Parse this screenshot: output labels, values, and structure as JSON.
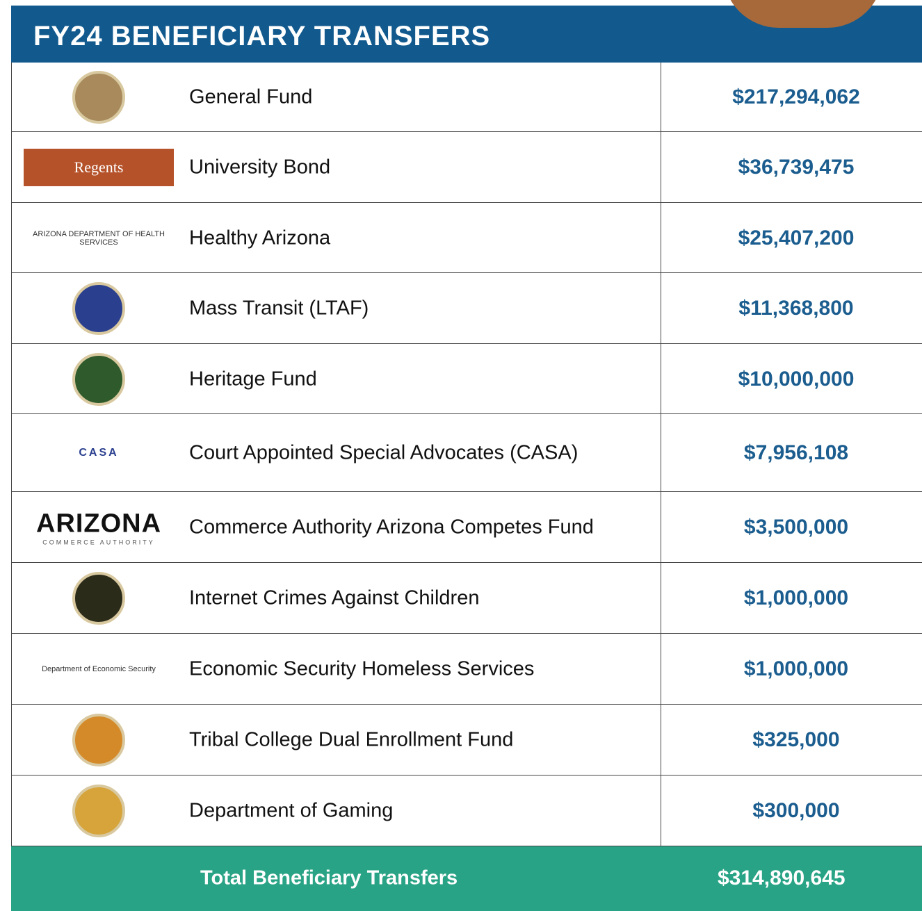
{
  "header": {
    "title": "FY24 BENEFICIARY TRANSFERS"
  },
  "table": {
    "rows": [
      {
        "label": "General Fund",
        "amount": "$217,294,062"
      },
      {
        "label": "University Bond",
        "amount": "$36,739,475",
        "logo_text": "Regents"
      },
      {
        "label": "Healthy Arizona",
        "amount": "$25,407,200",
        "logo_text": "ARIZONA DEPARTMENT OF HEALTH SERVICES"
      },
      {
        "label": "Mass Transit (LTAF)",
        "amount": "$11,368,800"
      },
      {
        "label": "Heritage Fund",
        "amount": "$10,000,000"
      },
      {
        "label": "Court Appointed Special Advocates (CASA)",
        "amount": "$7,956,108",
        "logo_text": "CASA"
      },
      {
        "label": "Commerce Authority Arizona Competes Fund",
        "amount": "$3,500,000",
        "logo_text": "ARIZONA",
        "logo_subtext": "COMMERCE AUTHORITY"
      },
      {
        "label": "Internet Crimes Against Children",
        "amount": "$1,000,000"
      },
      {
        "label": "Economic Security Homeless Services",
        "amount": "$1,000,000",
        "logo_text": "Department of Economic Security"
      },
      {
        "label": "Tribal College Dual Enrollment Fund",
        "amount": "$325,000"
      },
      {
        "label": "Department of Gaming",
        "amount": "$300,000"
      }
    ]
  },
  "footer": {
    "label": "Total Beneficiary Transfers",
    "amount": "$314,890,645"
  }
}
